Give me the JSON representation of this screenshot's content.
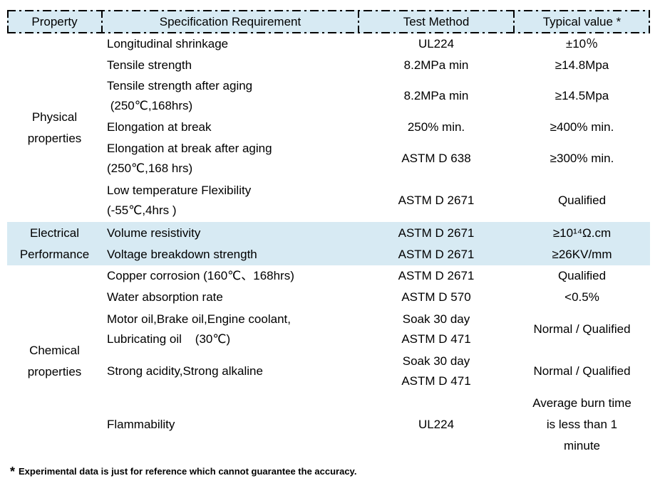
{
  "header": {
    "property": "Property",
    "specification": "Specification Requirement",
    "test_method": "Test Method",
    "typical_value": "Typical value *"
  },
  "groups": {
    "physical": {
      "lines": [
        "Physical",
        "properties"
      ]
    },
    "electrical": {
      "lines": [
        "Electrical",
        "Performance"
      ]
    },
    "chemical": {
      "lines": [
        "Chemical",
        "properties"
      ]
    }
  },
  "rows": [
    {
      "spec": [
        "Longitudinal shrinkage"
      ],
      "test": [
        "UL224"
      ],
      "typical": [
        "±10％"
      ]
    },
    {
      "spec": [
        "Tensile strength"
      ],
      "test": [
        "8.2MPa min"
      ],
      "typical": [
        "≥14.8Mpa"
      ]
    },
    {
      "spec": [
        "Tensile strength after aging",
        " (250℃,168hrs)"
      ],
      "test": [
        "8.2MPa min"
      ],
      "typical": [
        "≥14.5Mpa"
      ]
    },
    {
      "spec": [
        "Elongation at break"
      ],
      "test": [
        "250% min."
      ],
      "typical": [
        "≥400% min."
      ]
    },
    {
      "spec": [
        "Elongation at break after aging",
        "(250℃,168 hrs)"
      ],
      "test": [
        "ASTM D 638"
      ],
      "typical": [
        "≥300% min."
      ]
    },
    {
      "spec": [
        "Low temperature Flexibility",
        "(-55℃,4hrs )"
      ],
      "test": [
        "ASTM D 2671"
      ],
      "typical": [
        "Qualified"
      ]
    },
    {
      "spec": [
        "Volume resistivity"
      ],
      "test": [
        "ASTM D 2671"
      ],
      "typical": [
        "≥10¹⁴Ω.cm"
      ]
    },
    {
      "spec": [
        "Voltage breakdown strength"
      ],
      "test": [
        "ASTM D 2671"
      ],
      "typical": [
        "≥26KV/mm"
      ]
    },
    {
      "spec": [
        "Copper corrosion (160℃、168hrs)"
      ],
      "test": [
        "ASTM D 2671"
      ],
      "typical": [
        "Qualified"
      ]
    },
    {
      "spec": [
        "Water absorption rate"
      ],
      "test": [
        "ASTM D 570"
      ],
      "typical": [
        "<0.5%"
      ]
    },
    {
      "spec": [
        "Motor oil,Brake oil,Engine coolant,",
        "Lubricating oil    (30℃)"
      ],
      "test": [
        "Soak 30 day",
        "ASTM D 471"
      ],
      "typical": [
        "Normal / Qualified"
      ]
    },
    {
      "spec": [
        "Strong acidity,Strong alkaline"
      ],
      "test": [
        "Soak 30 day",
        "ASTM D 471"
      ],
      "typical": [
        "Normal / Qualified"
      ]
    },
    {
      "spec": [
        "Flammability"
      ],
      "test": [
        "UL224"
      ],
      "typical": [
        "Average burn time",
        "is less than 1",
        "minute"
      ]
    }
  ],
  "footnote": {
    "marker": "*",
    "text": "Experimental data is just for reference which cannot guarantee the accuracy."
  },
  "colors": {
    "header_bg": "#d7eaf3",
    "highlight_bg": "#d7eaf3",
    "border": "#000000",
    "text": "#000000"
  }
}
